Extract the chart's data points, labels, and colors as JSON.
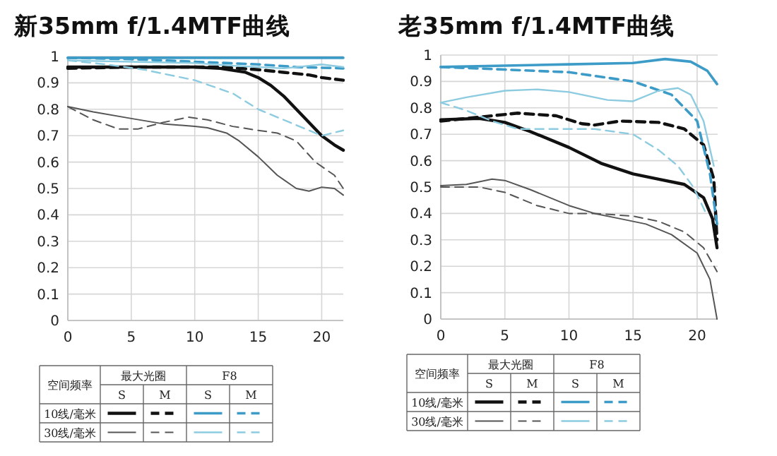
{
  "chart_data": [
    {
      "type": "line",
      "title": "新35mm f/1.4MTF曲线",
      "xlim": [
        0,
        21.7
      ],
      "xticks": [
        0,
        5,
        10,
        15,
        20
      ],
      "ylim": [
        0,
        1
      ],
      "yticks": [
        0,
        0.1,
        0.2,
        0.3,
        0.4,
        0.5,
        0.6,
        0.7,
        0.8,
        0.9,
        1
      ],
      "grid": true,
      "annotations": [
        "空间频率",
        "最大光圈",
        "F8",
        "S",
        "M",
        "S",
        "M",
        "10线/毫米",
        "30线/毫米"
      ],
      "series": [
        {
          "color": "#111111",
          "line_style": "solid",
          "x": [
            0,
            5,
            10,
            12,
            14,
            15,
            16,
            17,
            18,
            19,
            20,
            21,
            21.7
          ],
          "values": [
            0.96,
            0.96,
            0.96,
            0.955,
            0.94,
            0.92,
            0.89,
            0.85,
            0.8,
            0.75,
            0.7,
            0.665,
            0.645
          ]
        },
        {
          "color": "#111111",
          "line_style": "dashed",
          "x": [
            0,
            5,
            10,
            12,
            15,
            17,
            19,
            20,
            21.7
          ],
          "values": [
            0.955,
            0.96,
            0.96,
            0.96,
            0.95,
            0.94,
            0.93,
            0.92,
            0.91
          ]
        },
        {
          "color": "#555555",
          "line_style": "solid",
          "x": [
            0,
            2,
            5,
            7.5,
            10,
            11,
            12.5,
            13.5,
            15,
            16.5,
            18,
            19,
            20,
            21,
            21.7
          ],
          "values": [
            0.81,
            0.79,
            0.765,
            0.745,
            0.735,
            0.73,
            0.71,
            0.68,
            0.62,
            0.55,
            0.5,
            0.49,
            0.505,
            0.5,
            0.475
          ]
        },
        {
          "color": "#555555",
          "line_style": "dashed",
          "x": [
            0,
            2,
            4,
            5.5,
            7.5,
            9.5,
            11,
            13,
            15,
            16.5,
            18,
            19.5,
            21,
            21.7
          ],
          "values": [
            0.81,
            0.76,
            0.725,
            0.725,
            0.75,
            0.77,
            0.76,
            0.735,
            0.72,
            0.71,
            0.68,
            0.6,
            0.55,
            0.5
          ]
        },
        {
          "color": "#3d9bc8",
          "line_style": "solid",
          "x": [
            0,
            5,
            10,
            15,
            20,
            21.7
          ],
          "values": [
            0.995,
            0.995,
            0.995,
            0.995,
            0.995,
            0.995
          ]
        },
        {
          "color": "#3d9bc8",
          "line_style": "dashed",
          "x": [
            0,
            5,
            10,
            15,
            18,
            21.7
          ],
          "values": [
            0.995,
            0.99,
            0.98,
            0.97,
            0.96,
            0.955
          ]
        },
        {
          "color": "#8ccbe0",
          "line_style": "solid",
          "x": [
            0,
            5,
            10,
            13,
            17,
            19,
            20,
            21.7
          ],
          "values": [
            0.985,
            0.98,
            0.975,
            0.965,
            0.955,
            0.965,
            0.97,
            0.96
          ]
        },
        {
          "color": "#8ccbe0",
          "line_style": "dashed",
          "x": [
            0,
            3,
            6,
            10,
            13,
            15,
            17,
            19,
            20,
            21.7
          ],
          "values": [
            0.985,
            0.97,
            0.95,
            0.91,
            0.86,
            0.8,
            0.76,
            0.72,
            0.7,
            0.72
          ]
        }
      ]
    },
    {
      "type": "line",
      "title": "老35mm f/1.4MTF曲线",
      "xlim": [
        0,
        21.6
      ],
      "xticks": [
        0,
        5,
        10,
        15,
        20
      ],
      "ylim": [
        0,
        1
      ],
      "yticks": [
        0,
        0.1,
        0.2,
        0.3,
        0.4,
        0.5,
        0.6,
        0.7,
        0.8,
        0.9,
        1
      ],
      "grid": true,
      "annotations": [
        "空间频率",
        "最大光圈",
        "F8",
        "S",
        "M",
        "S",
        "M",
        "10线/毫米",
        "30线/毫米"
      ],
      "series": [
        {
          "color": "#111111",
          "line_style": "solid",
          "x": [
            0,
            3,
            5,
            7,
            10,
            12.5,
            15,
            17,
            19,
            20.5,
            21.2,
            21.55
          ],
          "values": [
            0.755,
            0.76,
            0.745,
            0.71,
            0.65,
            0.59,
            0.55,
            0.53,
            0.51,
            0.46,
            0.38,
            0.27
          ]
        },
        {
          "color": "#111111",
          "line_style": "dashed",
          "x": [
            0,
            4,
            6,
            9,
            11,
            12,
            14,
            17,
            19,
            20.5,
            21.3,
            21.55
          ],
          "values": [
            0.75,
            0.77,
            0.78,
            0.77,
            0.74,
            0.735,
            0.75,
            0.745,
            0.72,
            0.66,
            0.53,
            0.3
          ]
        },
        {
          "color": "#555555",
          "line_style": "solid",
          "x": [
            0,
            2,
            4,
            5,
            7,
            10,
            12,
            14,
            16,
            18,
            20,
            21,
            21.55
          ],
          "values": [
            0.505,
            0.51,
            0.53,
            0.525,
            0.49,
            0.43,
            0.4,
            0.38,
            0.36,
            0.32,
            0.25,
            0.15,
            0
          ]
        },
        {
          "color": "#555555",
          "line_style": "dashed",
          "x": [
            0,
            3,
            5,
            7.5,
            10,
            12,
            15,
            17,
            19,
            20.5,
            21.55
          ],
          "values": [
            0.5,
            0.5,
            0.48,
            0.43,
            0.4,
            0.4,
            0.39,
            0.37,
            0.33,
            0.27,
            0.18
          ]
        },
        {
          "color": "#3d9bc8",
          "line_style": "solid",
          "x": [
            0,
            5,
            10,
            15,
            17.5,
            19.5,
            20.8,
            21.55
          ],
          "values": [
            0.955,
            0.96,
            0.965,
            0.97,
            0.985,
            0.975,
            0.94,
            0.89
          ]
        },
        {
          "color": "#3d9bc8",
          "line_style": "dashed",
          "x": [
            0,
            5,
            10,
            15,
            18,
            20,
            21,
            21.55
          ],
          "values": [
            0.955,
            0.945,
            0.935,
            0.9,
            0.85,
            0.75,
            0.55,
            0.36
          ]
        },
        {
          "color": "#8ccbe0",
          "line_style": "solid",
          "x": [
            0,
            2,
            5,
            7.5,
            10,
            13,
            15,
            17,
            18.5,
            19.5,
            20.5,
            21.3
          ],
          "values": [
            0.82,
            0.84,
            0.865,
            0.87,
            0.86,
            0.83,
            0.825,
            0.865,
            0.875,
            0.85,
            0.75,
            0.58
          ]
        },
        {
          "color": "#8ccbe0",
          "line_style": "dashed",
          "x": [
            0,
            2,
            4,
            6,
            9,
            12,
            15,
            17,
            18.5,
            19.7,
            20.7
          ],
          "values": [
            0.82,
            0.79,
            0.75,
            0.72,
            0.72,
            0.72,
            0.7,
            0.64,
            0.58,
            0.5,
            0.4
          ]
        }
      ]
    }
  ]
}
